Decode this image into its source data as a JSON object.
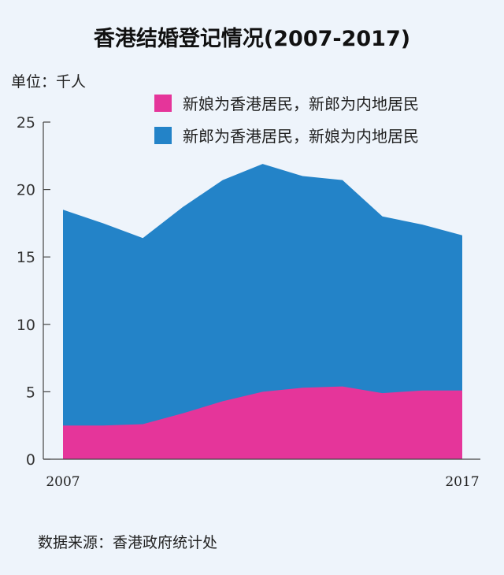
{
  "title": "香港结婚登记情况(2007-2017)",
  "unit_label": "单位：千人",
  "source": "数据来源：香港政府统计处",
  "colors": {
    "bride_hk": "#e5359a",
    "groom_hk": "#2383c8",
    "background": "#eef4fb"
  },
  "chart_data": {
    "type": "area",
    "stacked": true,
    "x": [
      2007,
      2008,
      2009,
      2010,
      2011,
      2012,
      2013,
      2014,
      2015,
      2016,
      2017
    ],
    "x_tick_labels": [
      "2007",
      "",
      "",
      "",
      "",
      "",
      "",
      "",
      "",
      "",
      "2017"
    ],
    "ylim": [
      0,
      25
    ],
    "y_ticks": [
      0,
      5,
      10,
      15,
      20,
      25
    ],
    "y_tick_labels": [
      "0",
      "5",
      "10",
      "15",
      "20",
      "25"
    ],
    "series": [
      {
        "name": "新娘为香港居民，新郎为内地居民",
        "color": "#e5359a",
        "values": [
          2.5,
          2.5,
          2.6,
          3.4,
          4.3,
          5.0,
          5.3,
          5.4,
          4.9,
          5.1,
          5.1
        ]
      },
      {
        "name": "新郎为香港居民，新娘为内地居民",
        "color": "#2383c8",
        "values": [
          16.0,
          15.0,
          13.8,
          15.3,
          16.4,
          16.9,
          15.7,
          15.3,
          13.1,
          12.3,
          11.5
        ]
      }
    ],
    "legend": {
      "placement": "top-right"
    }
  }
}
